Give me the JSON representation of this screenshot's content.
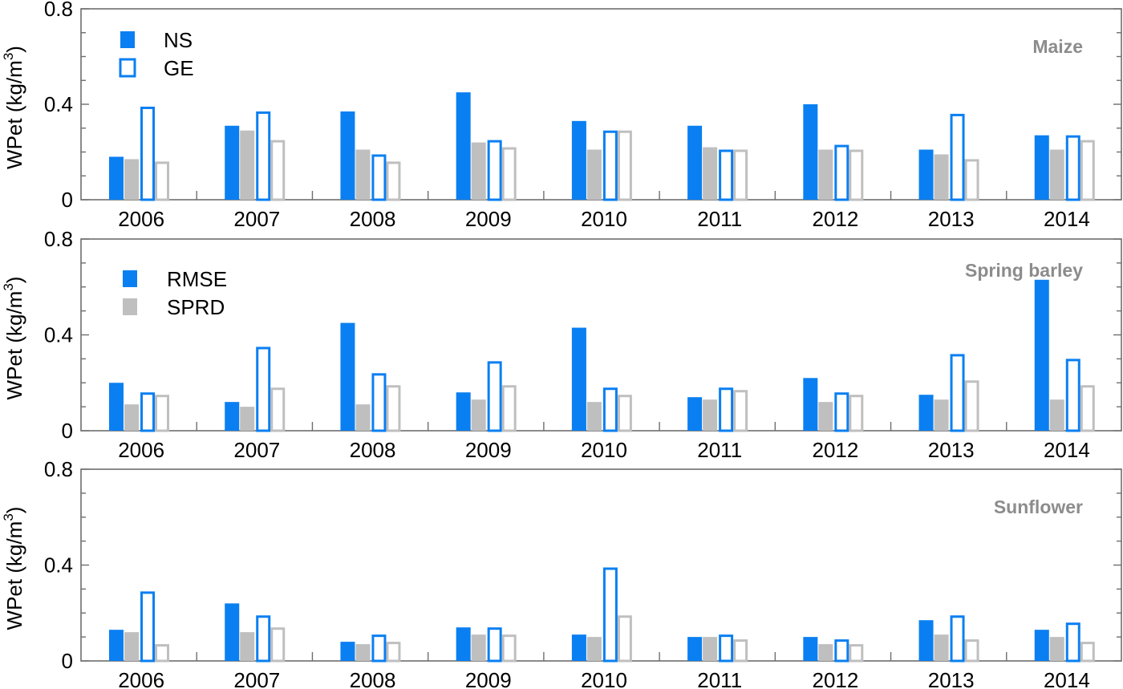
{
  "colors": {
    "rmse": "#0a7ff2",
    "sprd": "#bfbfbf",
    "axis": "#6e6e6e",
    "title": "#8c8c8c"
  },
  "legend_top": {
    "filled": "NS",
    "open": "GE"
  },
  "legend_fill": {
    "blue": "RMSE",
    "gray": "SPRD"
  },
  "chart_data": [
    {
      "type": "bar",
      "title": "Maize",
      "ylabel": "WPet (kg/m",
      "ylabel_sup": "3",
      "ylabel_close": ")",
      "ylim": [
        0,
        0.8
      ],
      "yticks": [
        "0",
        "0.4",
        "0.8"
      ],
      "categories": [
        "2006",
        "2007",
        "2008",
        "2009",
        "2010",
        "2011",
        "2012",
        "2013",
        "2014"
      ],
      "series": [
        {
          "name": "NS RMSE",
          "values": [
            0.18,
            0.31,
            0.37,
            0.45,
            0.33,
            0.31,
            0.4,
            0.21,
            0.27
          ]
        },
        {
          "name": "NS SPRD",
          "values": [
            0.17,
            0.29,
            0.21,
            0.24,
            0.21,
            0.22,
            0.21,
            0.19,
            0.21
          ]
        },
        {
          "name": "GE RMSE",
          "values": [
            0.39,
            0.37,
            0.19,
            0.25,
            0.29,
            0.21,
            0.23,
            0.36,
            0.27
          ]
        },
        {
          "name": "GE SPRD",
          "values": [
            0.16,
            0.25,
            0.16,
            0.22,
            0.29,
            0.21,
            0.21,
            0.17,
            0.25
          ]
        }
      ]
    },
    {
      "type": "bar",
      "title": "Spring barley",
      "ylabel": "WPet (kg/m",
      "ylabel_sup": "3",
      "ylabel_close": ")",
      "ylim": [
        0,
        0.8
      ],
      "yticks": [
        "0",
        "0.4",
        "0.8"
      ],
      "categories": [
        "2006",
        "2007",
        "2008",
        "2009",
        "2010",
        "2011",
        "2012",
        "2013",
        "2014"
      ],
      "series": [
        {
          "name": "NS RMSE",
          "values": [
            0.2,
            0.12,
            0.45,
            0.16,
            0.43,
            0.14,
            0.22,
            0.15,
            0.63
          ]
        },
        {
          "name": "NS SPRD",
          "values": [
            0.11,
            0.1,
            0.11,
            0.13,
            0.12,
            0.13,
            0.12,
            0.13,
            0.13
          ]
        },
        {
          "name": "GE RMSE",
          "values": [
            0.16,
            0.35,
            0.24,
            0.29,
            0.18,
            0.18,
            0.16,
            0.32,
            0.3
          ]
        },
        {
          "name": "GE SPRD",
          "values": [
            0.15,
            0.18,
            0.19,
            0.19,
            0.15,
            0.17,
            0.15,
            0.21,
            0.19
          ]
        }
      ]
    },
    {
      "type": "bar",
      "title": "Sunflower",
      "ylabel": "WPet (kg/m",
      "ylabel_sup": "3",
      "ylabel_close": ")",
      "ylim": [
        0,
        0.8
      ],
      "yticks": [
        "0",
        "0.4",
        "0.8"
      ],
      "categories": [
        "2006",
        "2007",
        "2008",
        "2009",
        "2010",
        "2011",
        "2012",
        "2013",
        "2014"
      ],
      "series": [
        {
          "name": "NS RMSE",
          "values": [
            0.13,
            0.24,
            0.08,
            0.14,
            0.11,
            0.1,
            0.1,
            0.17,
            0.13
          ]
        },
        {
          "name": "NS SPRD",
          "values": [
            0.12,
            0.12,
            0.07,
            0.11,
            0.1,
            0.1,
            0.07,
            0.11,
            0.1
          ]
        },
        {
          "name": "GE RMSE",
          "values": [
            0.29,
            0.19,
            0.11,
            0.14,
            0.39,
            0.11,
            0.09,
            0.19,
            0.16
          ]
        },
        {
          "name": "GE SPRD",
          "values": [
            0.07,
            0.14,
            0.08,
            0.11,
            0.19,
            0.09,
            0.07,
            0.09,
            0.08
          ]
        }
      ]
    }
  ]
}
